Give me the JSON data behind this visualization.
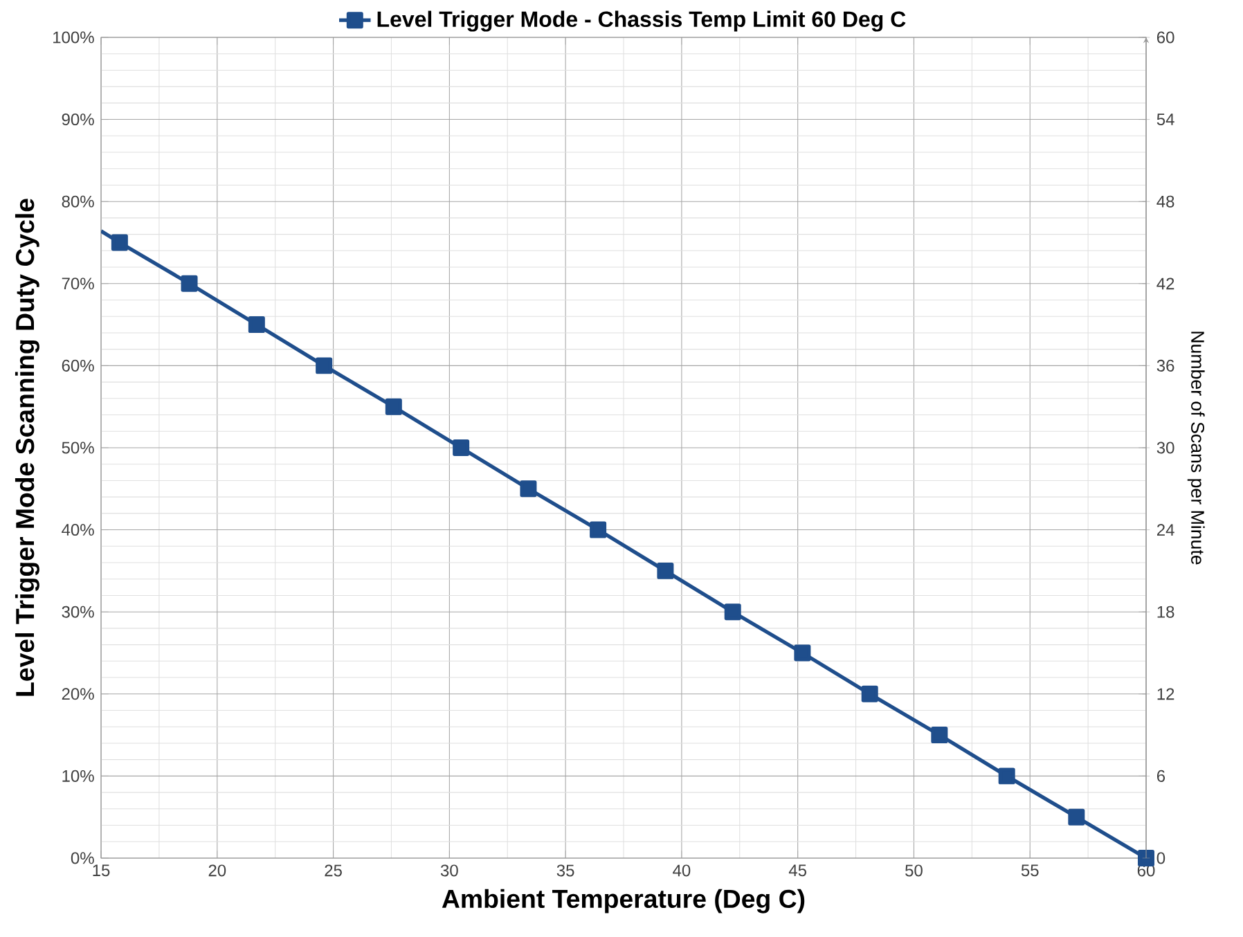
{
  "chart_data": {
    "type": "line",
    "xlabel": "Ambient Temperature (Deg C)",
    "ylabel": "Level Trigger Mode Scanning Duty Cycle",
    "y2label": "Number of Scans per Minute",
    "xlim": [
      15,
      60
    ],
    "xticks": [
      15,
      20,
      25,
      30,
      35,
      40,
      45,
      50,
      55,
      60
    ],
    "ylim": [
      0,
      100
    ],
    "yticks": [
      {
        "value": 0,
        "label": "0%"
      },
      {
        "value": 10,
        "label": "10%"
      },
      {
        "value": 20,
        "label": "20%"
      },
      {
        "value": 30,
        "label": "30%"
      },
      {
        "value": 40,
        "label": "40%"
      },
      {
        "value": 50,
        "label": "50%"
      },
      {
        "value": 60,
        "label": "60%"
      },
      {
        "value": 70,
        "label": "70%"
      },
      {
        "value": 80,
        "label": "80%"
      },
      {
        "value": 90,
        "label": "90%"
      },
      {
        "value": 100,
        "label": "100%"
      }
    ],
    "y2lim": [
      0,
      60
    ],
    "y2ticks": [
      0,
      6,
      12,
      18,
      24,
      30,
      36,
      42,
      48,
      54,
      60
    ],
    "grid": true,
    "legend": "top",
    "line_style": "solid",
    "series": [
      {
        "name": "Level Trigger Mode - Chassis Temp Limit 60 Deg C",
        "color": "#1f4e8c",
        "marker": "square",
        "x": [
          15.8,
          18.8,
          21.7,
          24.6,
          27.6,
          30.5,
          33.4,
          36.4,
          39.3,
          42.2,
          45.2,
          48.1,
          51.1,
          54.0,
          57.0,
          60.0
        ],
        "values": [
          75,
          70,
          65,
          60,
          55,
          50,
          45,
          40,
          35,
          30,
          25,
          20,
          15,
          10,
          5,
          0
        ]
      },
      {
        "color": "#1f4e8c",
        "marker": "none",
        "x": [
          15,
          15.8
        ],
        "values": [
          76.4,
          75
        ]
      }
    ]
  }
}
